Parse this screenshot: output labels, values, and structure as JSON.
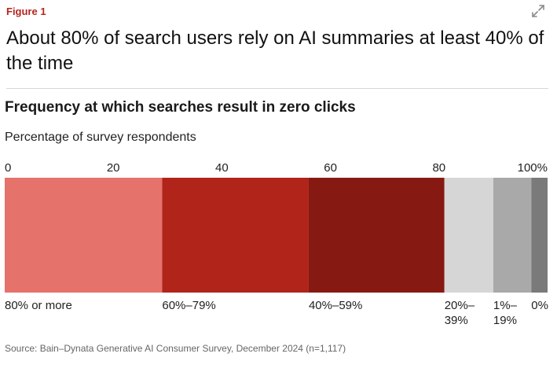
{
  "figure_label": "Figure 1",
  "headline": "About 80% of search users rely on AI summaries at least 40% of the time",
  "source": "Source: Bain–Dynata Generative AI Consumer Survey, December 2024 (n=1,117)",
  "icons": {
    "expand": "expand-icon"
  },
  "colors": {
    "accent": "#b3261e"
  },
  "chart_data": {
    "type": "bar",
    "orientation": "horizontal-stacked-100",
    "title": "Frequency at which searches result in zero clicks",
    "subtitle": "Percentage of survey respondents",
    "xlim": [
      0,
      100
    ],
    "ticks": [
      0,
      20,
      40,
      60,
      80,
      100
    ],
    "tick_labels": [
      "0",
      "20",
      "40",
      "60",
      "80",
      "100%"
    ],
    "segments": [
      {
        "label": "80% or more",
        "label_lines": [
          "80% or more"
        ],
        "value": 29,
        "color": "#e5726b"
      },
      {
        "label": "60%–79%",
        "label_lines": [
          "60%–79%"
        ],
        "value": 27,
        "color": "#b1241a"
      },
      {
        "label": "40%–59%",
        "label_lines": [
          "40%–59%"
        ],
        "value": 25,
        "color": "#861a12"
      },
      {
        "label": "20%–39%",
        "label_lines": [
          "20%–",
          "39%"
        ],
        "value": 9,
        "color": "#d6d6d6"
      },
      {
        "label": "1%–19%",
        "label_lines": [
          "1%–",
          "19%"
        ],
        "value": 7,
        "color": "#a9a9a9"
      },
      {
        "label": "0%",
        "label_lines": [
          "0%"
        ],
        "value": 3,
        "color": "#7a7a7a"
      }
    ]
  }
}
